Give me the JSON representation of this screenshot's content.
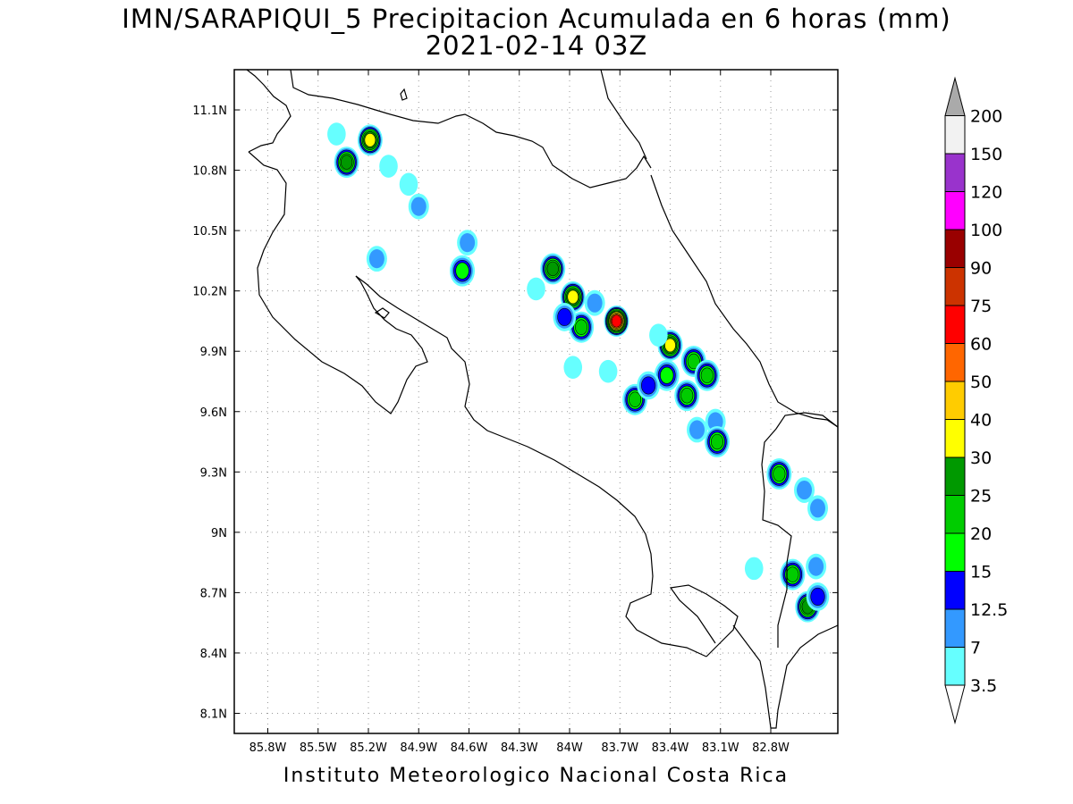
{
  "header": {
    "title_line1": "IMN/SARAPIQUI_5 Precipitacion Acumulada en 6 horas (mm)",
    "title_line2": "2021-02-14 03Z"
  },
  "footer": {
    "credit": "Instituto Meteorologico Nacional Costa Rica"
  },
  "map": {
    "lon_range": [
      -86.0,
      -82.4
    ],
    "lat_range": [
      8.0,
      11.3
    ],
    "lon_ticks": [
      {
        "value": -85.8,
        "label": "85.8W"
      },
      {
        "value": -85.5,
        "label": "85.5W"
      },
      {
        "value": -85.2,
        "label": "85.2W"
      },
      {
        "value": -84.9,
        "label": "84.9W"
      },
      {
        "value": -84.6,
        "label": "84.6W"
      },
      {
        "value": -84.3,
        "label": "84.3W"
      },
      {
        "value": -84.0,
        "label": "84W"
      },
      {
        "value": -83.7,
        "label": "83.7W"
      },
      {
        "value": -83.4,
        "label": "83.4W"
      },
      {
        "value": -83.1,
        "label": "83.1W"
      },
      {
        "value": -82.8,
        "label": "82.8W"
      }
    ],
    "lat_ticks": [
      {
        "value": 11.1,
        "label": "11.1N"
      },
      {
        "value": 10.8,
        "label": "10.8N"
      },
      {
        "value": 10.5,
        "label": "10.5N"
      },
      {
        "value": 10.2,
        "label": "10.2N"
      },
      {
        "value": 9.9,
        "label": "9.9N"
      },
      {
        "value": 9.6,
        "label": "9.6N"
      },
      {
        "value": 9.3,
        "label": "9.3N"
      },
      {
        "value": 9.0,
        "label": "9N"
      },
      {
        "value": 8.7,
        "label": "8.7N"
      },
      {
        "value": 8.4,
        "label": "8.4N"
      },
      {
        "value": 8.1,
        "label": "8.1N"
      }
    ],
    "grid": true
  },
  "colorbar": {
    "levels": [
      {
        "label": "3.5",
        "color": "#66ffff"
      },
      {
        "label": "7",
        "color": "#3399ff"
      },
      {
        "label": "12.5",
        "color": "#0000ff"
      },
      {
        "label": "15",
        "color": "#00ff00"
      },
      {
        "label": "20",
        "color": "#00cc00"
      },
      {
        "label": "25",
        "color": "#009900"
      },
      {
        "label": "30",
        "color": "#ffff00"
      },
      {
        "label": "40",
        "color": "#ffcc00"
      },
      {
        "label": "50",
        "color": "#ff6600"
      },
      {
        "label": "60",
        "color": "#ff0000"
      },
      {
        "label": "75",
        "color": "#cc3300"
      },
      {
        "label": "90",
        "color": "#990000"
      },
      {
        "label": "100",
        "color": "#ff00ff"
      },
      {
        "label": "120",
        "color": "#9933cc"
      },
      {
        "label": "150",
        "color": "#f2f2f2"
      },
      {
        "label": "200",
        "color": "#aaaaaa"
      }
    ],
    "below_color": "#ffffff",
    "above_color": "#aaaaaa"
  },
  "precip_cells": [
    {
      "lon": -85.19,
      "lat": 10.95,
      "peak": 30
    },
    {
      "lon": -85.33,
      "lat": 10.84,
      "peak": 25
    },
    {
      "lon": -85.39,
      "lat": 10.98,
      "peak": 3.5
    },
    {
      "lon": -85.08,
      "lat": 10.82,
      "peak": 3.5
    },
    {
      "lon": -84.96,
      "lat": 10.73,
      "peak": 3.5
    },
    {
      "lon": -84.9,
      "lat": 10.62,
      "peak": 7
    },
    {
      "lon": -84.61,
      "lat": 10.44,
      "peak": 7
    },
    {
      "lon": -84.64,
      "lat": 10.3,
      "peak": 15
    },
    {
      "lon": -85.15,
      "lat": 10.36,
      "peak": 7
    },
    {
      "lon": -84.1,
      "lat": 10.31,
      "peak": 25
    },
    {
      "lon": -83.98,
      "lat": 10.17,
      "peak": 30
    },
    {
      "lon": -83.85,
      "lat": 10.14,
      "peak": 7
    },
    {
      "lon": -83.72,
      "lat": 10.05,
      "peak": 60
    },
    {
      "lon": -83.93,
      "lat": 10.02,
      "peak": 20
    },
    {
      "lon": -84.03,
      "lat": 10.07,
      "peak": 12.5
    },
    {
      "lon": -83.4,
      "lat": 9.93,
      "peak": 30
    },
    {
      "lon": -83.26,
      "lat": 9.85,
      "peak": 20
    },
    {
      "lon": -83.18,
      "lat": 9.78,
      "peak": 20
    },
    {
      "lon": -83.42,
      "lat": 9.78,
      "peak": 15
    },
    {
      "lon": -83.61,
      "lat": 9.66,
      "peak": 20
    },
    {
      "lon": -83.53,
      "lat": 9.73,
      "peak": 12.5
    },
    {
      "lon": -83.3,
      "lat": 9.68,
      "peak": 20
    },
    {
      "lon": -83.13,
      "lat": 9.55,
      "peak": 7
    },
    {
      "lon": -83.12,
      "lat": 9.45,
      "peak": 20
    },
    {
      "lon": -83.24,
      "lat": 9.51,
      "peak": 7
    },
    {
      "lon": -82.75,
      "lat": 9.29,
      "peak": 20
    },
    {
      "lon": -82.6,
      "lat": 9.21,
      "peak": 7
    },
    {
      "lon": -82.52,
      "lat": 9.12,
      "peak": 7
    },
    {
      "lon": -82.67,
      "lat": 8.79,
      "peak": 20
    },
    {
      "lon": -82.53,
      "lat": 8.83,
      "peak": 7
    },
    {
      "lon": -82.58,
      "lat": 8.63,
      "peak": 25
    },
    {
      "lon": -82.52,
      "lat": 8.68,
      "peak": 12.5
    },
    {
      "lon": -82.9,
      "lat": 8.82,
      "peak": 3.5
    },
    {
      "lon": -83.98,
      "lat": 9.82,
      "peak": 3.5
    },
    {
      "lon": -83.77,
      "lat": 9.8,
      "peak": 3.5
    },
    {
      "lon": -83.47,
      "lat": 9.98,
      "peak": 3.5
    },
    {
      "lon": -84.2,
      "lat": 10.21,
      "peak": 3.5
    }
  ]
}
